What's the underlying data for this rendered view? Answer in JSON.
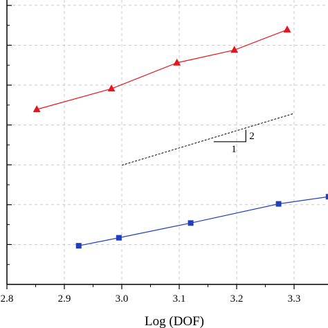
{
  "chart_data": {
    "type": "line",
    "xlabel": "Log (DOF)",
    "ylabel": "",
    "xlim": [
      2.8,
      3.35
    ],
    "ylim": [
      0,
      7
    ],
    "x_ticks": [
      "2.8",
      "2.9",
      "3.0",
      "3.1",
      "3.2",
      "3.3"
    ],
    "x_tick_values": [
      2.8,
      2.9,
      3.0,
      3.1,
      3.2,
      3.3
    ],
    "y_tick_values": [
      1,
      2,
      3,
      4,
      5,
      6,
      7
    ],
    "grid": true,
    "series": [
      {
        "color": "#e8141c",
        "marker": "triangle",
        "x": [
          2.852,
          2.982,
          3.096,
          3.196,
          3.288
        ],
        "y": [
          4.39,
          4.91,
          5.56,
          5.88,
          6.39
        ]
      },
      {
        "color": "#1f3fbf",
        "marker": "square",
        "x": [
          2.925,
          2.995,
          3.12,
          3.273,
          3.36
        ],
        "y": [
          0.97,
          1.17,
          1.54,
          2.02,
          2.2
        ]
      }
    ],
    "reference_line": {
      "color": "#000000",
      "style": "dashed",
      "x": [
        3.0,
        3.3
      ],
      "y": [
        2.99,
        4.29
      ]
    },
    "slope_triangle": {
      "x": [
        3.16,
        3.216
      ],
      "y": [
        3.58,
        3.88
      ],
      "run_label": "1",
      "rise_label": "2"
    }
  }
}
